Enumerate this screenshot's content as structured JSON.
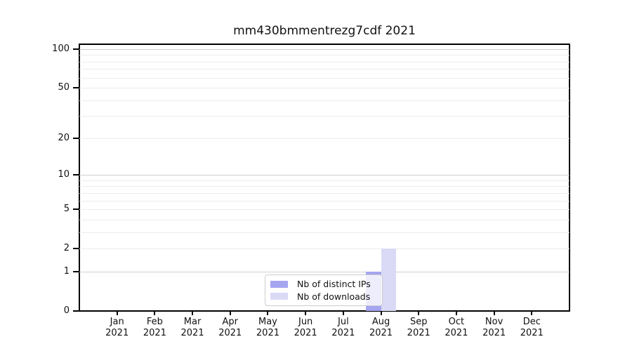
{
  "chart_data": {
    "type": "bar",
    "title": "mm430bmmentrezg7cdf 2021",
    "categories": [
      "Jan",
      "Feb",
      "Mar",
      "Apr",
      "May",
      "Jun",
      "Jul",
      "Aug",
      "Sep",
      "Oct",
      "Nov",
      "Dec"
    ],
    "x_year_label": "2021",
    "series": [
      {
        "name": "Nb of distinct IPs",
        "color": "#a5a5f0",
        "values": [
          0,
          0,
          0,
          0,
          0,
          0,
          0,
          1,
          0,
          0,
          0,
          0
        ]
      },
      {
        "name": "Nb of downloads",
        "color": "#dadaf6",
        "values": [
          0,
          0,
          0,
          0,
          0,
          0,
          0,
          2,
          0,
          0,
          0,
          0
        ]
      }
    ],
    "y_scale": "log1p",
    "y_ticks": [
      0,
      1,
      2,
      5,
      10,
      20,
      50,
      100
    ],
    "ylim": [
      0,
      109
    ],
    "xlim_padding_units": 1,
    "bar_width_units": 0.4,
    "grid": true,
    "grid_major_values": [
      1,
      10,
      100
    ],
    "grid_minor_values": [
      2,
      3,
      4,
      5,
      6,
      7,
      8,
      9,
      20,
      30,
      40,
      50,
      60,
      70,
      80,
      90
    ],
    "legend_position": "lower center"
  },
  "colors": {
    "grid_major": "#d0d0d0",
    "grid_minor": "#ececec",
    "axis": "#000000",
    "legend_border": "#cccccc",
    "text": "#111111"
  }
}
